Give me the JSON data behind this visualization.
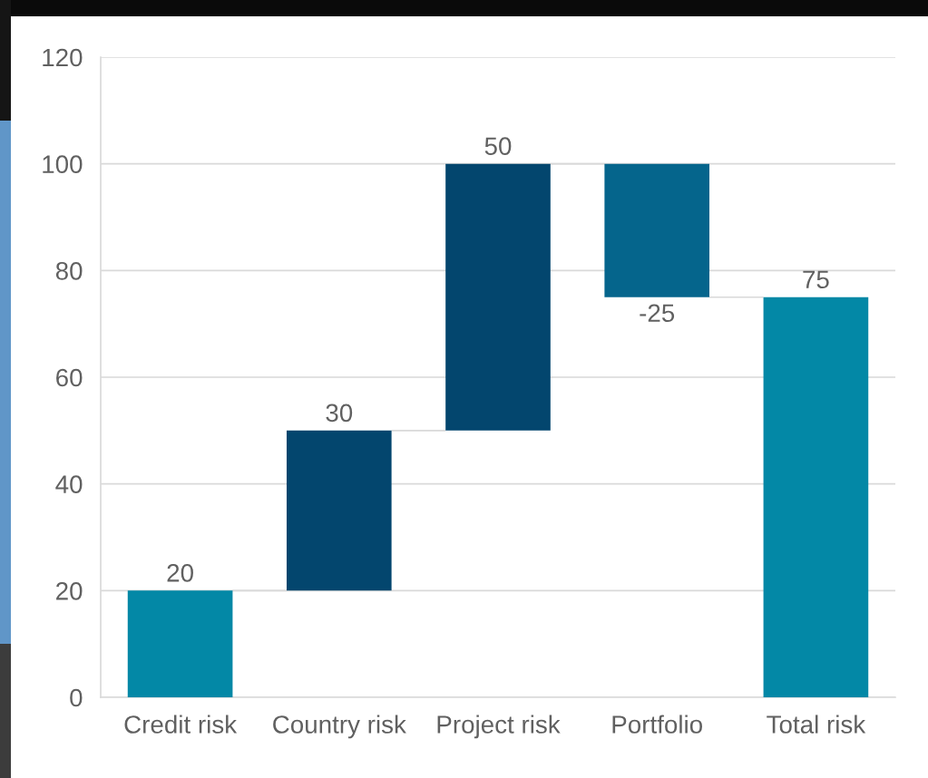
{
  "chart_data": {
    "type": "bar",
    "categories": [
      "Credit risk",
      "Country risk",
      "Project risk",
      "Portfolio",
      "Total risk"
    ],
    "values": [
      20,
      30,
      50,
      -25,
      75
    ],
    "base": [
      0,
      20,
      50,
      100,
      0
    ],
    "colors": [
      "#0388a6",
      "#03466e",
      "#03466e",
      "#05658c",
      "#0388a6"
    ],
    "ylim": [
      0,
      120
    ],
    "yticks": [
      0,
      20,
      40,
      60,
      80,
      100,
      120
    ],
    "grid": "y",
    "data_labels": true
  }
}
